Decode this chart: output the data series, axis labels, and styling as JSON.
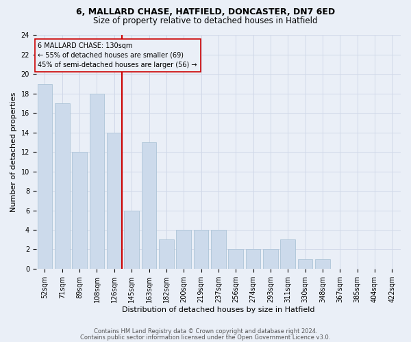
{
  "title1": "6, MALLARD CHASE, HATFIELD, DONCASTER, DN7 6ED",
  "title2": "Size of property relative to detached houses in Hatfield",
  "xlabel": "Distribution of detached houses by size in Hatfield",
  "ylabel": "Number of detached properties",
  "categories": [
    "52sqm",
    "71sqm",
    "89sqm",
    "108sqm",
    "126sqm",
    "145sqm",
    "163sqm",
    "182sqm",
    "200sqm",
    "219sqm",
    "237sqm",
    "256sqm",
    "274sqm",
    "293sqm",
    "311sqm",
    "330sqm",
    "348sqm",
    "367sqm",
    "385sqm",
    "404sqm",
    "422sqm"
  ],
  "values": [
    19,
    17,
    12,
    18,
    14,
    6,
    13,
    3,
    4,
    4,
    4,
    2,
    2,
    2,
    3,
    1,
    1,
    0,
    0,
    0,
    0
  ],
  "bar_color": "#ccdaeb",
  "bar_edge_color": "#adc4d8",
  "vline_index": 4,
  "vline_color": "#cc0000",
  "annotation_box_text": "6 MALLARD CHASE: 130sqm\n← 55% of detached houses are smaller (69)\n45% of semi-detached houses are larger (56) →",
  "annotation_box_color": "#cc0000",
  "ylim": [
    0,
    24
  ],
  "yticks": [
    0,
    2,
    4,
    6,
    8,
    10,
    12,
    14,
    16,
    18,
    20,
    22,
    24
  ],
  "grid_color": "#d0d8e8",
  "footer1": "Contains HM Land Registry data © Crown copyright and database right 2024.",
  "footer2": "Contains public sector information licensed under the Open Government Licence v3.0.",
  "bg_color": "#eaeff7",
  "title1_fontsize": 9,
  "title2_fontsize": 8.5,
  "xlabel_fontsize": 8,
  "ylabel_fontsize": 8,
  "tick_fontsize": 7,
  "annot_fontsize": 7,
  "footer_fontsize": 6
}
